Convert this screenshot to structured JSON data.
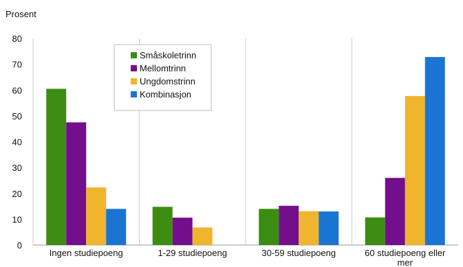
{
  "chart_data": {
    "type": "bar",
    "ylabel": "Prosent",
    "xlabel": "",
    "title": "",
    "ylim": [
      0,
      80
    ],
    "yticks": [
      0,
      10,
      20,
      30,
      40,
      50,
      60,
      70,
      80
    ],
    "grid": "vertical separators between categories",
    "legend_position": "top-left inside plot",
    "categories": [
      [
        "Ingen studiepoeng"
      ],
      [
        "1-29 studiepoeng"
      ],
      [
        "30-59 studiepoeng"
      ],
      [
        "60 studiepoeng eller",
        "mer"
      ]
    ],
    "series": [
      {
        "name": "Småskoletrinn",
        "color": "#3c8c12",
        "values": [
          60.5,
          14.8,
          14.0,
          10.7
        ]
      },
      {
        "name": "Mellomtrinn",
        "color": "#730e8d",
        "values": [
          47.5,
          10.6,
          15.2,
          26.0
        ]
      },
      {
        "name": "Ungdomstrinn",
        "color": "#f0b42d",
        "values": [
          22.3,
          6.8,
          13.1,
          57.7
        ]
      },
      {
        "name": "Kombinasjon",
        "color": "#1a75d2",
        "values": [
          14.0,
          null,
          13.0,
          72.8
        ]
      }
    ]
  }
}
